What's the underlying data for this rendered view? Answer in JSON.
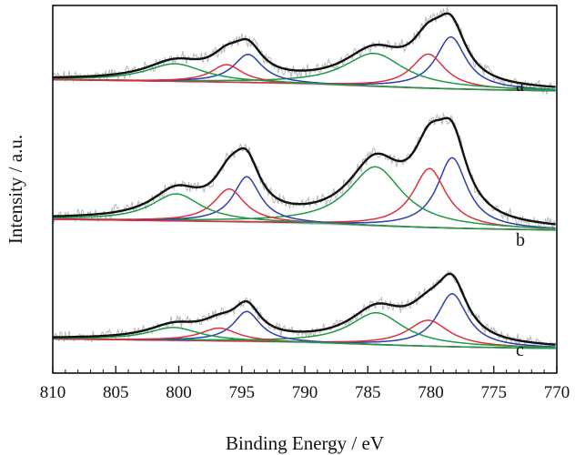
{
  "chart_data": {
    "type": "line",
    "xlabel": "Binding Energy / eV",
    "ylabel": "Intensity / a.u.",
    "xlim": [
      810,
      770
    ],
    "x_reversed": true,
    "x_ticks": [
      810,
      805,
      800,
      795,
      790,
      785,
      780,
      775,
      770
    ],
    "y_ticks_shown": false,
    "grid": false,
    "legend": "none",
    "colors": {
      "raw": "#b9b9b9",
      "envelope": "#111111",
      "peak_blue": "#2c3fb0",
      "peak_red": "#e0303a",
      "peak_green": "#1d9a46",
      "background": "#c9c9c9"
    },
    "traces": [
      {
        "label": "a",
        "peaks": [
          {
            "color": "peak_blue",
            "center": 778.4,
            "height": 0.44,
            "width": 1.45
          },
          {
            "color": "peak_red",
            "center": 780.2,
            "height": 0.29,
            "width": 1.6
          },
          {
            "color": "peak_green",
            "center": 784.5,
            "height": 0.28,
            "width": 2.9
          },
          {
            "color": "peak_blue",
            "center": 794.5,
            "height": 0.24,
            "width": 1.4
          },
          {
            "color": "peak_red",
            "center": 796.2,
            "height": 0.15,
            "width": 1.5
          },
          {
            "color": "peak_green",
            "center": 800.3,
            "height": 0.15,
            "width": 2.8
          }
        ]
      },
      {
        "label": "b",
        "peaks": [
          {
            "color": "peak_blue",
            "center": 778.3,
            "height": 0.62,
            "width": 1.45
          },
          {
            "color": "peak_red",
            "center": 780.1,
            "height": 0.52,
            "width": 1.6
          },
          {
            "color": "peak_green",
            "center": 784.4,
            "height": 0.52,
            "width": 2.6
          },
          {
            "color": "peak_blue",
            "center": 794.6,
            "height": 0.4,
            "width": 1.3
          },
          {
            "color": "peak_red",
            "center": 796.0,
            "height": 0.29,
            "width": 1.5
          },
          {
            "color": "peak_green",
            "center": 800.2,
            "height": 0.24,
            "width": 2.4
          }
        ]
      },
      {
        "label": "c",
        "peaks": [
          {
            "color": "peak_blue",
            "center": 778.3,
            "height": 0.53,
            "width": 1.45
          },
          {
            "color": "peak_red",
            "center": 780.2,
            "height": 0.26,
            "width": 2.0
          },
          {
            "color": "peak_green",
            "center": 784.3,
            "height": 0.32,
            "width": 2.6
          },
          {
            "color": "peak_blue",
            "center": 794.6,
            "height": 0.3,
            "width": 1.3
          },
          {
            "color": "peak_red",
            "center": 796.8,
            "height": 0.13,
            "width": 1.8
          },
          {
            "color": "peak_green",
            "center": 800.4,
            "height": 0.13,
            "width": 2.5
          }
        ]
      }
    ]
  }
}
